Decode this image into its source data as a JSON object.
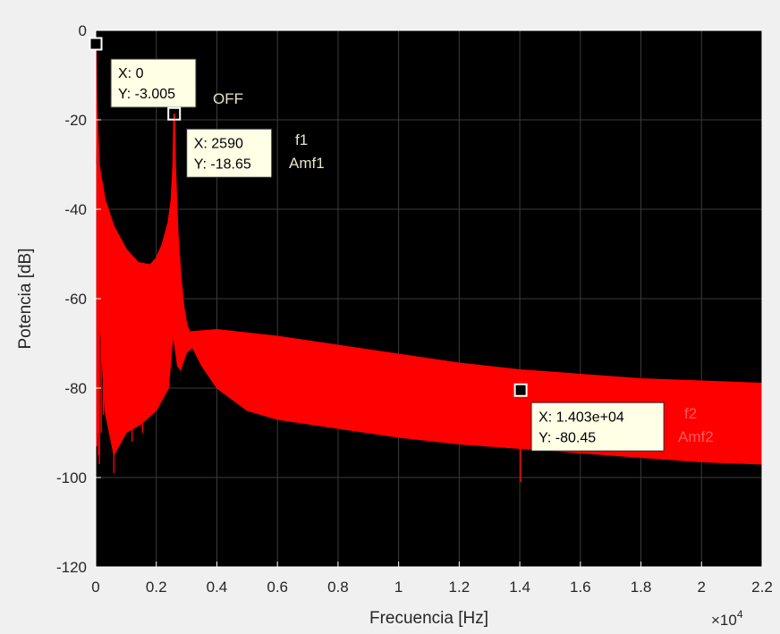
{
  "colors": {
    "figure_bg": "#f0f0f0",
    "axes_bg": "#000000",
    "grid": "#3c3c3c",
    "series": "#ff0000",
    "tip_bg": "#ffffe6",
    "annotation_light": "#e6e6c8",
    "annotation_red": "#ff5a5a"
  },
  "chart_data": {
    "type": "line",
    "xlabel": "Frecuencia [Hz]",
    "ylabel": "Potencia [dB]",
    "x_exponent": "×10",
    "x_exponent_power": "4",
    "xlim": [
      0,
      2.2
    ],
    "ylim": [
      -120,
      0
    ],
    "x_unit_scale": 10000,
    "x_ticks": [
      "0",
      "0.2",
      "0.4",
      "0.6",
      "0.8",
      "1",
      "1.2",
      "1.4",
      "1.6",
      "1.8",
      "2",
      "2.2"
    ],
    "y_ticks": [
      "0",
      "-20",
      "-40",
      "-60",
      "-80",
      "-100",
      "-120"
    ],
    "grid": true,
    "series": [
      {
        "upper_envelope": [
          [
            0,
            -3
          ],
          [
            0.002,
            -15
          ],
          [
            0.01,
            -30
          ],
          [
            0.03,
            -38
          ],
          [
            0.06,
            -44
          ],
          [
            0.1,
            -49
          ],
          [
            0.14,
            -52
          ],
          [
            0.18,
            -52.5
          ],
          [
            0.2,
            -51
          ],
          [
            0.22,
            -48
          ],
          [
            0.24,
            -43
          ],
          [
            0.25,
            -38
          ],
          [
            0.256,
            -30
          ],
          [
            0.259,
            -18.65
          ],
          [
            0.262,
            -30
          ],
          [
            0.27,
            -45
          ],
          [
            0.28,
            -55
          ],
          [
            0.29,
            -62
          ],
          [
            0.3,
            -66
          ],
          [
            0.31,
            -67.5
          ],
          [
            0.4,
            -67
          ],
          [
            0.6,
            -68.5
          ],
          [
            0.8,
            -70.5
          ],
          [
            1.0,
            -72.5
          ],
          [
            1.2,
            -74.5
          ],
          [
            1.4,
            -76
          ],
          [
            1.6,
            -77
          ],
          [
            1.8,
            -78
          ],
          [
            2.0,
            -78.5
          ],
          [
            2.2,
            -79
          ]
        ],
        "lower_envelope": [
          [
            0,
            -3
          ],
          [
            0.002,
            -20
          ],
          [
            0.01,
            -60
          ],
          [
            0.03,
            -85
          ],
          [
            0.06,
            -95
          ],
          [
            0.1,
            -90
          ],
          [
            0.15,
            -88
          ],
          [
            0.2,
            -85
          ],
          [
            0.24,
            -80
          ],
          [
            0.255,
            -68
          ],
          [
            0.26,
            -70
          ],
          [
            0.27,
            -75
          ],
          [
            0.28,
            -76
          ],
          [
            0.3,
            -72
          ],
          [
            0.32,
            -71
          ],
          [
            0.35,
            -75
          ],
          [
            0.4,
            -80
          ],
          [
            0.5,
            -85
          ],
          [
            0.6,
            -87
          ],
          [
            0.8,
            -89
          ],
          [
            1.0,
            -91
          ],
          [
            1.2,
            -92.5
          ],
          [
            1.4,
            -93.5
          ],
          [
            1.6,
            -94.5
          ],
          [
            1.8,
            -95.5
          ],
          [
            2.0,
            -96.5
          ],
          [
            2.2,
            -97
          ]
        ],
        "spikes": [
          [
            0.004,
            -93
          ],
          [
            0.006,
            -90
          ],
          [
            0.009,
            -95
          ],
          [
            0.012,
            -97
          ],
          [
            0.018,
            -90
          ],
          [
            0.025,
            -86
          ],
          [
            0.04,
            -87
          ],
          [
            0.06,
            -99
          ],
          [
            0.075,
            -91
          ],
          [
            0.09,
            -88
          ],
          [
            0.12,
            -92
          ],
          [
            0.155,
            -90
          ],
          [
            0.185,
            -86
          ],
          [
            0.2,
            -84
          ],
          [
            0.22,
            -82
          ],
          [
            0.26,
            -58
          ],
          [
            0.263,
            -63
          ],
          [
            0.3,
            -70.5
          ],
          [
            1.403,
            -101
          ]
        ]
      }
    ],
    "datatips": [
      {
        "x_label": "X: 0",
        "y_label": "Y: -3.005",
        "x": 0,
        "y": -3.005
      },
      {
        "x_label": "X: 2590",
        "y_label": "Y: -18.65",
        "x": 0.259,
        "y": -18.65
      },
      {
        "x_label": "X: 1.403e+04",
        "y_label": "Y: -80.45",
        "x": 1.403,
        "y": -80.45
      }
    ],
    "annotations": [
      {
        "lines": [
          "OFF"
        ],
        "color": "#e6e6c8"
      },
      {
        "lines": [
          "f1",
          "Amf1"
        ],
        "color": "#e6e6c8"
      },
      {
        "lines": [
          "f2",
          "Amf2"
        ],
        "color": "#ff5a5a"
      }
    ]
  }
}
